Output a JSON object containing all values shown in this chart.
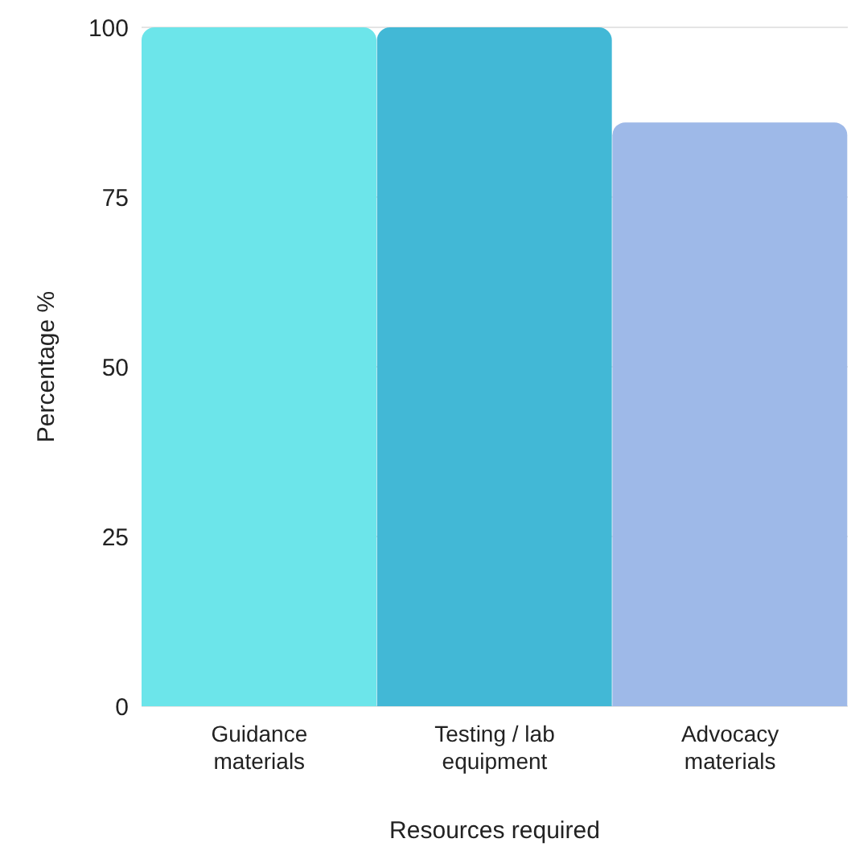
{
  "chart_data": {
    "type": "bar",
    "xlabel": "Resources required",
    "ylabel": "Percentage %",
    "categories": [
      "Guidance materials",
      "Testing / lab equipment",
      "Advocacy materials"
    ],
    "values": [
      100,
      100,
      86
    ],
    "colors": [
      "#6ce5ea",
      "#42b8d6",
      "#9eb9e8"
    ],
    "ylim": [
      0,
      100
    ],
    "yticks": [
      0,
      25,
      50,
      75,
      100
    ],
    "grid": "y"
  }
}
